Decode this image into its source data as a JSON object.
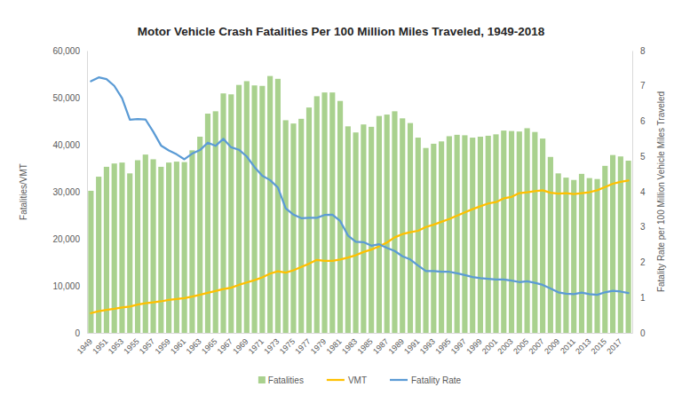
{
  "chart_data": {
    "type": "bar",
    "title": "Motor Vehicle Crash Fatalities Per 100 Million Miles Traveled, 1949-2018",
    "y_label": "Fatalities/VMT",
    "y2_label": "Fatality Rate per 100 Million Vehicle Miles Traveled",
    "categories": [
      "1949",
      null,
      "1951",
      null,
      "1953",
      null,
      "1955",
      null,
      "1957",
      null,
      "1959",
      null,
      "1961",
      null,
      "1963",
      null,
      "1965",
      null,
      "1967",
      null,
      "1969",
      null,
      "1971",
      null,
      "1973",
      null,
      "1975",
      null,
      "1977",
      null,
      "1979",
      null,
      "1981",
      null,
      "1983",
      null,
      "1985",
      null,
      "1987",
      null,
      "1989",
      null,
      "1991",
      null,
      "1993",
      null,
      "1995",
      null,
      "1997",
      null,
      "1999",
      null,
      "2001",
      null,
      "2003",
      null,
      "2005",
      null,
      "2007",
      null,
      "2009",
      null,
      "2011",
      null,
      "2013",
      null,
      "2015",
      null,
      "2017",
      null
    ],
    "series": [
      {
        "name": "Fatalities",
        "type": "bar",
        "color": "#a9d18e",
        "values": [
          30200,
          33200,
          35300,
          36000,
          36200,
          33900,
          36700,
          37900,
          36900,
          35300,
          36200,
          36400,
          36300,
          38800,
          41700,
          46600,
          47100,
          50900,
          50700,
          52700,
          53500,
          52600,
          52500,
          54600,
          54000,
          45200,
          44500,
          45500,
          47900,
          50300,
          51100,
          51100,
          49300,
          43900,
          42600,
          44300,
          43800,
          46100,
          46400,
          47100,
          45600,
          44600,
          41500,
          39300,
          40200,
          40700,
          41800,
          42100,
          42000,
          41500,
          41700,
          41900,
          42200,
          43000,
          42900,
          42800,
          43500,
          42700,
          41300,
          37400,
          33900,
          33000,
          32500,
          33800,
          32900,
          32700,
          35500,
          37800,
          37500,
          36600
        ]
      },
      {
        "name": "VMT",
        "type": "line",
        "color": "#ffc000",
        "values": [
          4200,
          4600,
          4900,
          5100,
          5400,
          5600,
          6000,
          6300,
          6500,
          6700,
          7000,
          7200,
          7400,
          7700,
          8100,
          8500,
          8900,
          9300,
          9600,
          10200,
          10700,
          11200,
          11800,
          12600,
          13100,
          12800,
          13300,
          14000,
          14700,
          15500,
          15300,
          15300,
          15600,
          16000,
          16500,
          17200,
          17700,
          18400,
          19200,
          20300,
          21000,
          21400,
          21700,
          22500,
          23000,
          23600,
          24200,
          24900,
          25600,
          26300,
          26900,
          27500,
          27800,
          28600,
          28900,
          29700,
          29900,
          30100,
          30300,
          29800,
          29600,
          29700,
          29500,
          29700,
          29900,
          30300,
          31000,
          31700,
          32100,
          32400
        ]
      },
      {
        "name": "Fatality Rate",
        "type": "line",
        "axis": "y2",
        "color": "#5b9bd5",
        "values": [
          7.13,
          7.24,
          7.19,
          7.0,
          6.65,
          6.04,
          6.06,
          6.05,
          5.7,
          5.31,
          5.17,
          5.06,
          4.92,
          5.08,
          5.18,
          5.39,
          5.3,
          5.5,
          5.26,
          5.19,
          5.0,
          4.7,
          4.45,
          4.33,
          4.12,
          3.53,
          3.35,
          3.25,
          3.26,
          3.26,
          3.34,
          3.35,
          3.17,
          2.76,
          2.58,
          2.57,
          2.47,
          2.51,
          2.41,
          2.32,
          2.17,
          2.08,
          1.91,
          1.75,
          1.75,
          1.73,
          1.73,
          1.69,
          1.64,
          1.58,
          1.55,
          1.53,
          1.51,
          1.51,
          1.48,
          1.44,
          1.46,
          1.42,
          1.36,
          1.26,
          1.15,
          1.11,
          1.1,
          1.14,
          1.1,
          1.08,
          1.15,
          1.19,
          1.17,
          1.13
        ]
      }
    ],
    "ylim": [
      0,
      60000
    ],
    "yticks": [
      0,
      {
        "value": 10000,
        "label": "10,000"
      },
      {
        "value": 20000,
        "label": "20,000"
      },
      {
        "value": 30000,
        "label": "30,000"
      },
      {
        "value": 40000,
        "label": "40,000"
      },
      {
        "value": 50000,
        "label": "50,000"
      },
      {
        "value": 60000,
        "label": "60,000"
      }
    ],
    "y2lim": [
      0,
      8
    ],
    "y2ticks": [
      0,
      1,
      2,
      3,
      4,
      5,
      6,
      7,
      8
    ],
    "grid": false,
    "legend": "bottom"
  }
}
